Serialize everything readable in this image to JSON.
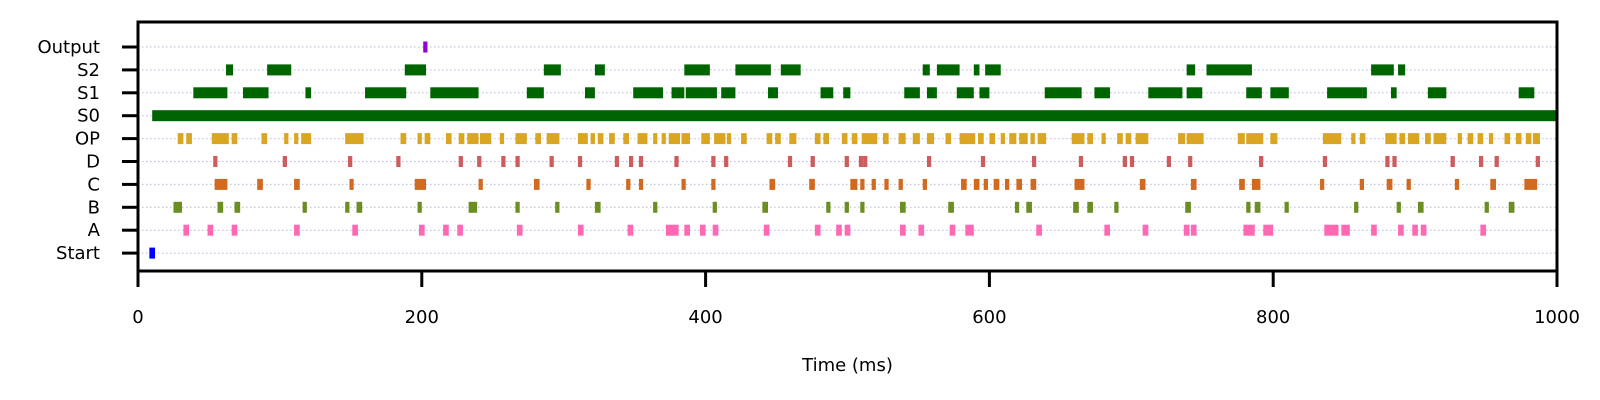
{
  "chart_data": {
    "type": "raster",
    "xlabel": "Time (ms)",
    "xlim": [
      0,
      1000
    ],
    "xticks": [
      0,
      200,
      400,
      600,
      800,
      1000
    ],
    "grid": "horizontal-dotted",
    "rows": [
      {
        "label": "Output",
        "color": "#9400d3",
        "intervals": [
          [
            201,
            204
          ]
        ]
      },
      {
        "label": "S2",
        "color": "#006400",
        "intervals": [
          [
            62,
            67
          ],
          [
            91,
            108
          ],
          [
            188,
            203
          ],
          [
            286,
            298
          ],
          [
            322,
            329
          ],
          [
            385,
            403
          ],
          [
            421,
            446
          ],
          [
            453,
            467
          ],
          [
            553,
            558
          ],
          [
            563,
            579
          ],
          [
            589,
            593
          ],
          [
            597,
            608
          ],
          [
            739,
            745
          ],
          [
            753,
            785
          ],
          [
            869,
            885
          ],
          [
            888,
            893
          ]
        ]
      },
      {
        "label": "S1",
        "color": "#006400",
        "intervals": [
          [
            39,
            63
          ],
          [
            74,
            92
          ],
          [
            118,
            122
          ],
          [
            160,
            189
          ],
          [
            206,
            240
          ],
          [
            274,
            286
          ],
          [
            315,
            322
          ],
          [
            349,
            370
          ],
          [
            376,
            385
          ],
          [
            386,
            408
          ],
          [
            411,
            421
          ],
          [
            444,
            451
          ],
          [
            481,
            490
          ],
          [
            497,
            502
          ],
          [
            540,
            551
          ],
          [
            556,
            563
          ],
          [
            577,
            589
          ],
          [
            593,
            600
          ],
          [
            639,
            665
          ],
          [
            674,
            685
          ],
          [
            712,
            736
          ],
          [
            739,
            750
          ],
          [
            781,
            792
          ],
          [
            798,
            811
          ],
          [
            838,
            863
          ],
          [
            863,
            866
          ],
          [
            883,
            887
          ],
          [
            909,
            922
          ],
          [
            973,
            984
          ]
        ]
      },
      {
        "label": "S0",
        "color": "#006400",
        "intervals": [
          [
            10,
            1000
          ]
        ]
      },
      {
        "label": "OP",
        "color": "#daa520",
        "intervals": [
          [
            28,
            32
          ],
          [
            34,
            38
          ],
          [
            52,
            64
          ],
          [
            66,
            70
          ],
          [
            87,
            91
          ],
          [
            103,
            106
          ],
          [
            110,
            113
          ],
          [
            115,
            122
          ],
          [
            146,
            159
          ],
          [
            185,
            189
          ],
          [
            197,
            200
          ],
          [
            202,
            206
          ],
          [
            217,
            221
          ],
          [
            226,
            230
          ],
          [
            232,
            240
          ],
          [
            241,
            249
          ],
          [
            255,
            258
          ],
          [
            266,
            274
          ],
          [
            280,
            284
          ],
          [
            288,
            297
          ],
          [
            310,
            317
          ],
          [
            319,
            322
          ],
          [
            324,
            328
          ],
          [
            332,
            336
          ],
          [
            342,
            346
          ],
          [
            352,
            359
          ],
          [
            363,
            366
          ],
          [
            369,
            372
          ],
          [
            374,
            382
          ],
          [
            383,
            389
          ],
          [
            397,
            403
          ],
          [
            406,
            414
          ],
          [
            415,
            418
          ],
          [
            425,
            429
          ],
          [
            443,
            447
          ],
          [
            449,
            453
          ],
          [
            459,
            464
          ],
          [
            477,
            481
          ],
          [
            483,
            487
          ],
          [
            496,
            500
          ],
          [
            503,
            507
          ],
          [
            510,
            521
          ],
          [
            525,
            529
          ],
          [
            536,
            541
          ],
          [
            546,
            551
          ],
          [
            556,
            561
          ],
          [
            569,
            573
          ],
          [
            579,
            590
          ],
          [
            592,
            596
          ],
          [
            600,
            604
          ],
          [
            608,
            611
          ],
          [
            614,
            619
          ],
          [
            621,
            627
          ],
          [
            629,
            632
          ],
          [
            634,
            640
          ],
          [
            658,
            667
          ],
          [
            669,
            673
          ],
          [
            679,
            682
          ],
          [
            690,
            694
          ],
          [
            696,
            700
          ],
          [
            703,
            712
          ],
          [
            733,
            738
          ],
          [
            739,
            751
          ],
          [
            775,
            780
          ],
          [
            781,
            793
          ],
          [
            798,
            803
          ],
          [
            835,
            848
          ],
          [
            855,
            858
          ],
          [
            861,
            865
          ],
          [
            879,
            887
          ],
          [
            889,
            893
          ],
          [
            895,
            903
          ],
          [
            907,
            911
          ],
          [
            913,
            922
          ],
          [
            930,
            933
          ],
          [
            937,
            941
          ],
          [
            944,
            948
          ],
          [
            952,
            955
          ],
          [
            963,
            967
          ],
          [
            971,
            975
          ],
          [
            978,
            982
          ],
          [
            983,
            988
          ]
        ]
      },
      {
        "label": "D",
        "color": "#cd5c5c",
        "intervals": [
          [
            53,
            56
          ],
          [
            102,
            105
          ],
          [
            148,
            151
          ],
          [
            182,
            185
          ],
          [
            226,
            229
          ],
          [
            239,
            242
          ],
          [
            256,
            259
          ],
          [
            266,
            269
          ],
          [
            290,
            293
          ],
          [
            310,
            313
          ],
          [
            336,
            339
          ],
          [
            346,
            349
          ],
          [
            353,
            356
          ],
          [
            378,
            381
          ],
          [
            404,
            407
          ],
          [
            413,
            416
          ],
          [
            458,
            461
          ],
          [
            474,
            477
          ],
          [
            498,
            501
          ],
          [
            508,
            511
          ],
          [
            511,
            514
          ],
          [
            556,
            559
          ],
          [
            594,
            597
          ],
          [
            630,
            633
          ],
          [
            663,
            666
          ],
          [
            694,
            697
          ],
          [
            699,
            702
          ],
          [
            725,
            728
          ],
          [
            740,
            743
          ],
          [
            790,
            793
          ],
          [
            835,
            838
          ],
          [
            879,
            882
          ],
          [
            884,
            887
          ],
          [
            925,
            928
          ],
          [
            945,
            948
          ],
          [
            956,
            959
          ],
          [
            985,
            988
          ]
        ]
      },
      {
        "label": "C",
        "color": "#d2691e",
        "intervals": [
          [
            54,
            63
          ],
          [
            84,
            88
          ],
          [
            110,
            114
          ],
          [
            149,
            152
          ],
          [
            195,
            203
          ],
          [
            240,
            243
          ],
          [
            279,
            283
          ],
          [
            316,
            319
          ],
          [
            344,
            347
          ],
          [
            353,
            356
          ],
          [
            383,
            386
          ],
          [
            404,
            407
          ],
          [
            445,
            449
          ],
          [
            473,
            477
          ],
          [
            502,
            507
          ],
          [
            509,
            512
          ],
          [
            517,
            520
          ],
          [
            526,
            529
          ],
          [
            536,
            539
          ],
          [
            553,
            556
          ],
          [
            580,
            584
          ],
          [
            589,
            593
          ],
          [
            596,
            599
          ],
          [
            603,
            607
          ],
          [
            611,
            614
          ],
          [
            619,
            623
          ],
          [
            629,
            633
          ],
          [
            660,
            667
          ],
          [
            706,
            710
          ],
          [
            742,
            746
          ],
          [
            776,
            780
          ],
          [
            785,
            791
          ],
          [
            833,
            836
          ],
          [
            861,
            864
          ],
          [
            880,
            884
          ],
          [
            894,
            897
          ],
          [
            928,
            931
          ],
          [
            953,
            957
          ],
          [
            977,
            986
          ]
        ]
      },
      {
        "label": "B",
        "color": "#6b8e23",
        "intervals": [
          [
            25,
            31
          ],
          [
            56,
            60
          ],
          [
            68,
            72
          ],
          [
            116,
            119
          ],
          [
            146,
            149
          ],
          [
            154,
            158
          ],
          [
            197,
            200
          ],
          [
            233,
            239
          ],
          [
            266,
            269
          ],
          [
            294,
            297
          ],
          [
            322,
            326
          ],
          [
            363,
            366
          ],
          [
            405,
            408
          ],
          [
            440,
            444
          ],
          [
            485,
            488
          ],
          [
            498,
            501
          ],
          [
            509,
            512
          ],
          [
            537,
            541
          ],
          [
            571,
            575
          ],
          [
            618,
            621
          ],
          [
            626,
            630
          ],
          [
            659,
            663
          ],
          [
            669,
            673
          ],
          [
            688,
            691
          ],
          [
            738,
            742
          ],
          [
            781,
            784
          ],
          [
            787,
            791
          ],
          [
            808,
            811
          ],
          [
            857,
            860
          ],
          [
            887,
            890
          ],
          [
            902,
            906
          ],
          [
            949,
            952
          ],
          [
            966,
            970
          ]
        ]
      },
      {
        "label": "A",
        "color": "#ff69b4",
        "intervals": [
          [
            32,
            36
          ],
          [
            49,
            53
          ],
          [
            66,
            70
          ],
          [
            110,
            114
          ],
          [
            151,
            155
          ],
          [
            198,
            202
          ],
          [
            215,
            219
          ],
          [
            225,
            229
          ],
          [
            267,
            271
          ],
          [
            310,
            314
          ],
          [
            345,
            349
          ],
          [
            372,
            381
          ],
          [
            385,
            389
          ],
          [
            396,
            400
          ],
          [
            405,
            409
          ],
          [
            441,
            445
          ],
          [
            477,
            481
          ],
          [
            492,
            496
          ],
          [
            498,
            502
          ],
          [
            537,
            541
          ],
          [
            550,
            554
          ],
          [
            572,
            576
          ],
          [
            583,
            589
          ],
          [
            633,
            637
          ],
          [
            681,
            685
          ],
          [
            708,
            712
          ],
          [
            737,
            741
          ],
          [
            742,
            746
          ],
          [
            779,
            787
          ],
          [
            793,
            800
          ],
          [
            836,
            846
          ],
          [
            848,
            854
          ],
          [
            869,
            873
          ],
          [
            888,
            892
          ],
          [
            898,
            902
          ],
          [
            904,
            908
          ],
          [
            946,
            950
          ]
        ]
      },
      {
        "label": "Start",
        "color": "#0000ff",
        "intervals": [
          [
            8,
            12
          ]
        ]
      }
    ]
  }
}
